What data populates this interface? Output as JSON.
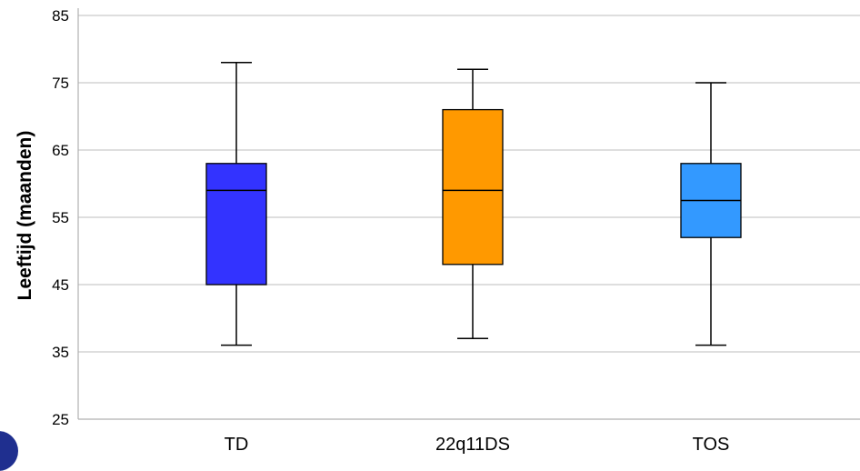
{
  "chart_data": {
    "type": "boxplot",
    "title": "",
    "xlabel": "",
    "ylabel": "Leeftijd (maanden)",
    "ylim": [
      25,
      85
    ],
    "yticks": [
      25,
      35,
      45,
      55,
      65,
      75,
      85
    ],
    "grid": true,
    "categories": [
      "TD",
      "22q11DS",
      "TOS"
    ],
    "boxes": [
      {
        "category": "TD",
        "min": 36,
        "q1": 45,
        "median": 59,
        "q3": 63,
        "max": 78,
        "color": "#3333ff"
      },
      {
        "category": "22q11DS",
        "min": 37,
        "q1": 48,
        "median": 59,
        "q3": 71,
        "max": 77,
        "color": "#ff9900"
      },
      {
        "category": "TOS",
        "min": 36,
        "q1": 52,
        "median": 57.5,
        "q3": 63,
        "max": 75,
        "color": "#3399ff"
      }
    ]
  }
}
